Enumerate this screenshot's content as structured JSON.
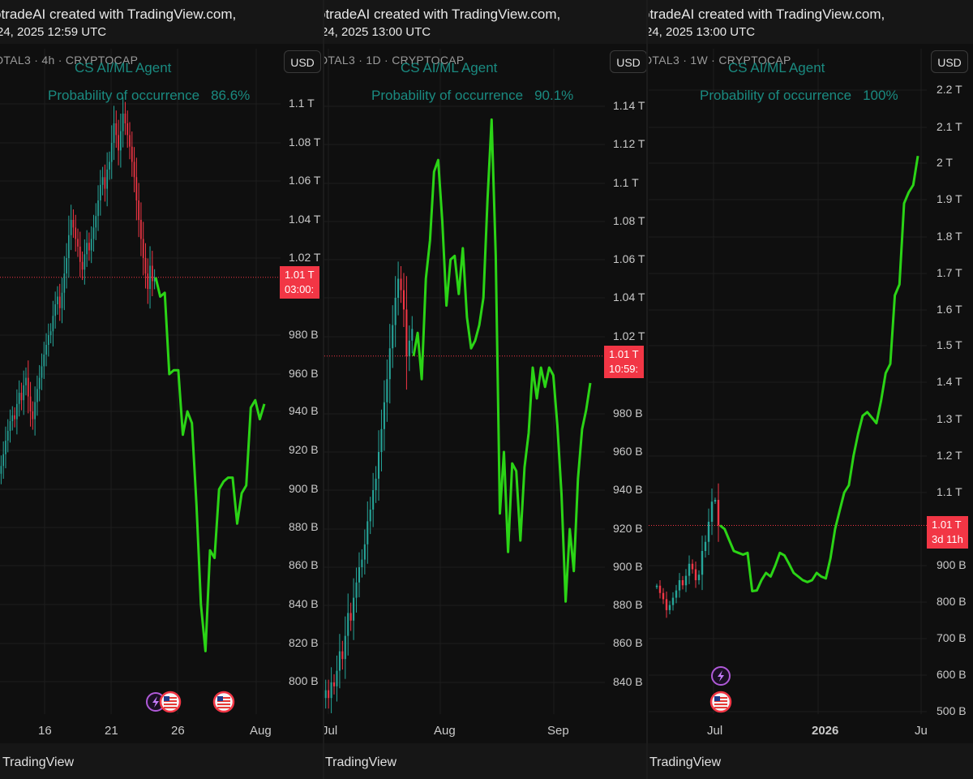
{
  "colors": {
    "background": "#0f0f0f",
    "up_candle": "#26a69a",
    "down_candle": "#f23645",
    "forecast": "#2bd416",
    "agent_text": "#1a8a80",
    "price_tag": "#f23645"
  },
  "panels": [
    {
      "credit": "otradeAI created with TradingView.com,",
      "timestamp": "24, 2025 12:59 UTC",
      "symbol": "DTAL3 · 4h · CRYPTOCAP",
      "currency_button": "USD",
      "agent_label": "CS AI/ML Agent",
      "probability_label": "Probability of occurrence",
      "probability_value": "86.6%",
      "price_label": "1.01 T",
      "countdown_label": "03:00:",
      "footer_brand": "TradingView",
      "y_ticks": [
        "1.1 T",
        "1.08 T",
        "1.06 T",
        "1.04 T",
        "1.02 T",
        "980 B",
        "960 B",
        "940 B",
        "920 B",
        "900 B",
        "880 B",
        "860 B",
        "840 B",
        "820 B",
        "800 B"
      ],
      "x_ticks": [
        "16",
        "21",
        "26",
        "Aug"
      ]
    },
    {
      "credit": "otradeAI created with TradingView.com,",
      "timestamp": "24, 2025 13:00 UTC",
      "symbol": "DTAL3 · 1D · CRYPTOCAP",
      "currency_button": "USD",
      "agent_label": "CS AI/ML Agent",
      "probability_label": "Probability of occurrence",
      "probability_value": "90.1%",
      "price_label": "1.01 T",
      "countdown_label": "10:59:",
      "footer_brand": "TradingView",
      "y_ticks": [
        "1.14 T",
        "1.12 T",
        "1.1 T",
        "1.08 T",
        "1.06 T",
        "1.04 T",
        "1.02 T",
        "980 B",
        "960 B",
        "940 B",
        "920 B",
        "900 B",
        "880 B",
        "860 B",
        "840 B"
      ],
      "x_ticks": [
        "Jul",
        "Aug",
        "Sep"
      ]
    },
    {
      "credit": "otradeAI created with TradingView.com,",
      "timestamp": "24, 2025 13:00 UTC",
      "symbol": "DTAL3 · 1W · CRYPTOCAP",
      "currency_button": "USD",
      "agent_label": "CS AI/ML Agent",
      "probability_label": "Probability of occurrence",
      "probability_value": "100%",
      "price_label": "1.01 T",
      "countdown_label": "3d 11h",
      "footer_brand": "TradingView",
      "y_ticks": [
        "2.2 T",
        "2.1 T",
        "2 T",
        "1.9 T",
        "1.8 T",
        "1.7 T",
        "1.6 T",
        "1.5 T",
        "1.4 T",
        "1.3 T",
        "1.2 T",
        "1.1 T",
        "900 B",
        "800 B",
        "700 B",
        "600 B",
        "500 B"
      ],
      "x_ticks": [
        "Jul",
        "2026",
        "Ju"
      ]
    }
  ],
  "chart_data": [
    {
      "type": "line",
      "title": "DTAL3 · 4h · CRYPTOCAP",
      "y_unit": "USD",
      "ylim": [
        780,
        1115
      ],
      "current_price": 1010,
      "candles": {
        "x_range": [
          "Jul 11",
          "Jul 24"
        ],
        "close": [
          912,
          918,
          925,
          930,
          935,
          938,
          936,
          944,
          950,
          946,
          954,
          958,
          948,
          940,
          936,
          945,
          952,
          958,
          964,
          970,
          975,
          980,
          982,
          990,
          996,
          1000,
          994,
          1002,
          1012,
          1020,
          1032,
          1040,
          1036,
          1030,
          1026,
          1018,
          1014,
          1022,
          1028,
          1024,
          1030,
          1036,
          1042,
          1050,
          1058,
          1062,
          1056,
          1066,
          1070,
          1080,
          1090,
          1084,
          1076,
          1086,
          1095,
          1090,
          1084,
          1078,
          1070,
          1062,
          1050,
          1040,
          1030,
          1020,
          1012,
          1004,
          1016,
          1008,
          1010
        ]
      },
      "forecast": {
        "x_range": [
          "Jul 24",
          "Aug 1"
        ],
        "values": [
          1010,
          1000,
          1002,
          960,
          962,
          962,
          928,
          940,
          934,
          892,
          840,
          816,
          868,
          864,
          900,
          904,
          906,
          906,
          882,
          898,
          902,
          942,
          946,
          936,
          944
        ]
      }
    },
    {
      "type": "line",
      "title": "DTAL3 · 1D · CRYPTOCAP",
      "y_unit": "USD",
      "ylim": [
        828,
        1150
      ],
      "current_price": 1010,
      "candles": {
        "x_range": [
          "Jul 1",
          "Jul 23"
        ],
        "close": [
          836,
          832,
          840,
          838,
          846,
          856,
          852,
          864,
          876,
          872,
          884,
          892,
          900,
          904,
          912,
          924,
          930,
          940,
          946,
          960,
          972,
          986,
          998,
          1014,
          1026,
          1040,
          1050,
          1044,
          1034,
          1010,
          1018,
          1024
        ]
      },
      "forecast": {
        "x_range": [
          "Jul 23",
          "Sep 4"
        ],
        "values": [
          1010,
          1022,
          998,
          1050,
          1070,
          1106,
          1112,
          1080,
          1036,
          1060,
          1062,
          1042,
          1066,
          1030,
          1014,
          1018,
          1026,
          1040,
          1092,
          1133,
          1062,
          928,
          960,
          908,
          954,
          950,
          914,
          952,
          970,
          1004,
          988,
          1004,
          994,
          1004,
          1000,
          974,
          938,
          882,
          920,
          898,
          946,
          972,
          982,
          996
        ]
      }
    },
    {
      "type": "line",
      "title": "DTAL3 · 1W · CRYPTOCAP",
      "y_unit": "USD",
      "ylim": [
        490,
        2260
      ],
      "current_price": 1010,
      "candles": {
        "x_range": [
          "Apr 2025",
          "Jul 2025"
        ],
        "close": [
          845,
          825,
          808,
          778,
          792,
          812,
          832,
          860,
          846,
          872,
          905,
          890,
          860,
          875,
          940,
          965,
          1020,
          1075,
          1080,
          1010
        ]
      },
      "forecast": {
        "x_range": [
          "Jul 2025",
          "Jul 2026"
        ],
        "values": [
          1010,
          1000,
          970,
          940,
          935,
          930,
          935,
          830,
          832,
          860,
          880,
          870,
          900,
          935,
          928,
          905,
          880,
          870,
          860,
          855,
          860,
          880,
          870,
          865,
          920,
          1000,
          1050,
          1100,
          1120,
          1200,
          1260,
          1310,
          1320,
          1305,
          1290,
          1350,
          1425,
          1450,
          1640,
          1670,
          1890,
          1920,
          1940,
          2020
        ]
      }
    }
  ]
}
